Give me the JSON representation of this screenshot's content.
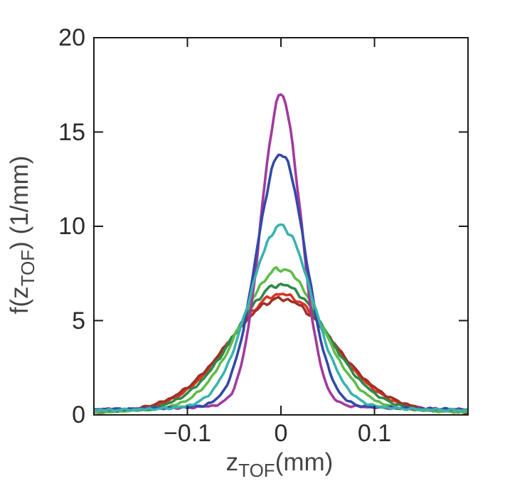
{
  "figure": {
    "title": "",
    "xlabel": {
      "pre": "z",
      "sub": "TOF",
      "post": "(mm)"
    },
    "ylabel": {
      "pre": "f(z",
      "sub": "TOF",
      "post": ") (1/mm)"
    },
    "axes": {
      "frame_color": "#1a1a1a",
      "tick_label_color": "#2b2b2b",
      "axis_label_color": "#454545",
      "xticks": [
        {
          "value": -0.1,
          "label": "−0.1"
        },
        {
          "value": 0,
          "label": "0"
        },
        {
          "value": 0.1,
          "label": "0.1"
        }
      ],
      "yticks": [
        {
          "value": 0,
          "label": "0"
        },
        {
          "value": 5,
          "label": "5"
        },
        {
          "value": 10,
          "label": "10"
        },
        {
          "value": 15,
          "label": "15"
        },
        {
          "value": 20,
          "label": "20"
        }
      ]
    }
  },
  "chart_data": {
    "type": "line",
    "title": "",
    "xlabel": "z_TOF (mm)",
    "ylabel": "f(z_TOF) (1/mm)",
    "xlim": [
      -0.2,
      0.2
    ],
    "ylim": [
      0,
      20
    ],
    "grid": false,
    "legend": "none",
    "description": "Seven noisy bell-shaped TOF position distributions, all centered at z=0, normalized so narrower peaks are taller. Curves are symmetric: y_half gives f at x = 0, 0.01, ... 0.20 mm; mirror for negative x.",
    "x_half_step_mm": 0.01,
    "series": [
      {
        "name": "red-wide-peak-6.4",
        "color": "#d93425",
        "peak": 6.4,
        "sigma_mm": 0.053,
        "y_half": [
          6.4,
          6.29,
          5.99,
          5.51,
          4.91,
          4.24,
          3.55,
          2.88,
          2.28,
          1.77,
          1.34,
          1.01,
          0.75,
          0.56,
          0.43,
          0.34,
          0.27,
          0.22,
          0.19,
          0.16,
          0.14
        ]
      },
      {
        "name": "dark-red-widest-peak-6.15",
        "color": "#9e3126",
        "peak": 6.15,
        "sigma_mm": 0.0555,
        "y_half": [
          6.15,
          6.06,
          5.79,
          5.37,
          4.83,
          4.22,
          3.59,
          2.97,
          2.39,
          1.89,
          1.46,
          1.12,
          0.84,
          0.64,
          0.49,
          0.37,
          0.29,
          0.24,
          0.2,
          0.16,
          0.14
        ]
      },
      {
        "name": "dark-green-peak-6.9",
        "color": "#2b8b49",
        "peak": 6.9,
        "sigma_mm": 0.049,
        "y_half": [
          6.9,
          6.78,
          6.38,
          5.79,
          5.06,
          4.26,
          3.46,
          2.72,
          2.08,
          1.56,
          1.15,
          0.84,
          0.62,
          0.46,
          0.36,
          0.29,
          0.25,
          0.22,
          0.19,
          0.17,
          0.15
        ]
      },
      {
        "name": "light-green-peak-7.75",
        "color": "#5fbc4a",
        "peak": 7.75,
        "sigma_mm": 0.0425,
        "y_half": [
          7.75,
          7.55,
          7.0,
          6.15,
          5.15,
          4.1,
          3.1,
          2.3,
          1.63,
          1.14,
          0.8,
          0.58,
          0.43,
          0.34,
          0.28,
          0.25,
          0.22,
          0.2,
          0.18,
          0.17,
          0.16
        ]
      },
      {
        "name": "magenta-narrowest-peak-17",
        "color": "#a23a9e",
        "peak": 17.0,
        "sigma_mm": 0.021,
        "y_half": [
          17.0,
          15.2,
          11.0,
          6.4,
          3.2,
          1.45,
          0.75,
          0.52,
          0.45,
          0.42,
          0.4,
          0.38,
          0.36,
          0.35,
          0.33,
          0.32,
          0.31,
          0.3,
          0.3,
          0.29,
          0.28
        ]
      },
      {
        "name": "blue-peak-13.9",
        "color": "#3349a8",
        "peak": 13.9,
        "sigma_mm": 0.026,
        "y_half": [
          13.9,
          12.9,
          10.5,
          7.4,
          4.6,
          2.6,
          1.4,
          0.8,
          0.55,
          0.45,
          0.42,
          0.4,
          0.38,
          0.36,
          0.35,
          0.33,
          0.32,
          0.31,
          0.3,
          0.29,
          0.28
        ]
      },
      {
        "name": "teal-peak-10",
        "color": "#3ab3ae",
        "peak": 10.0,
        "sigma_mm": 0.0335,
        "y_half": [
          10.0,
          9.6,
          8.45,
          6.85,
          5.1,
          3.55,
          2.35,
          1.5,
          0.95,
          0.65,
          0.48,
          0.4,
          0.36,
          0.33,
          0.31,
          0.29,
          0.28,
          0.27,
          0.26,
          0.25,
          0.24
        ]
      }
    ]
  }
}
